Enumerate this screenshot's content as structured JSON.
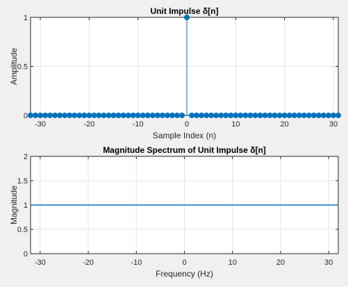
{
  "chart_data": [
    {
      "type": "stem",
      "title": "Unit Impulse δ[n]",
      "xlabel": "Sample Index (n)",
      "ylabel": "Amplitude",
      "xlim": [
        -32,
        31
      ],
      "ylim": [
        0,
        1
      ],
      "xticks": [
        -30,
        -20,
        -10,
        0,
        10,
        20,
        30
      ],
      "xtick_labels": [
        "-30",
        "-20",
        "-10",
        "0",
        "10",
        "20",
        "30"
      ],
      "yticks": [
        0,
        0.5,
        1
      ],
      "ytick_labels": [
        "0",
        "0.5",
        "1"
      ],
      "grid": true,
      "color": "#0072bd",
      "x": [
        -32,
        -31,
        -30,
        -29,
        -28,
        -27,
        -26,
        -25,
        -24,
        -23,
        -22,
        -21,
        -20,
        -19,
        -18,
        -17,
        -16,
        -15,
        -14,
        -13,
        -12,
        -11,
        -10,
        -9,
        -8,
        -7,
        -6,
        -5,
        -4,
        -3,
        -2,
        -1,
        0,
        1,
        2,
        3,
        4,
        5,
        6,
        7,
        8,
        9,
        10,
        11,
        12,
        13,
        14,
        15,
        16,
        17,
        18,
        19,
        20,
        21,
        22,
        23,
        24,
        25,
        26,
        27,
        28,
        29,
        30,
        31
      ],
      "y": [
        0,
        0,
        0,
        0,
        0,
        0,
        0,
        0,
        0,
        0,
        0,
        0,
        0,
        0,
        0,
        0,
        0,
        0,
        0,
        0,
        0,
        0,
        0,
        0,
        0,
        0,
        0,
        0,
        0,
        0,
        0,
        0,
        1,
        0,
        0,
        0,
        0,
        0,
        0,
        0,
        0,
        0,
        0,
        0,
        0,
        0,
        0,
        0,
        0,
        0,
        0,
        0,
        0,
        0,
        0,
        0,
        0,
        0,
        0,
        0,
        0,
        0,
        0,
        0
      ]
    },
    {
      "type": "line",
      "title": "Magnitude Spectrum of Unit Impulse δ[n]",
      "xlabel": "Frequency (Hz)",
      "ylabel": "Magnitude",
      "xlim": [
        -32,
        32
      ],
      "ylim": [
        0,
        2
      ],
      "xticks": [
        -30,
        -20,
        -10,
        0,
        10,
        20,
        30
      ],
      "xtick_labels": [
        "-30",
        "-20",
        "-10",
        "0",
        "10",
        "20",
        "30"
      ],
      "yticks": [
        0,
        0.5,
        1,
        1.5,
        2
      ],
      "ytick_labels": [
        "0",
        "0.5",
        "1",
        "1.5",
        "2"
      ],
      "grid": true,
      "color": "#0072bd",
      "x": [
        -32,
        32
      ],
      "y": [
        1,
        1
      ]
    }
  ]
}
